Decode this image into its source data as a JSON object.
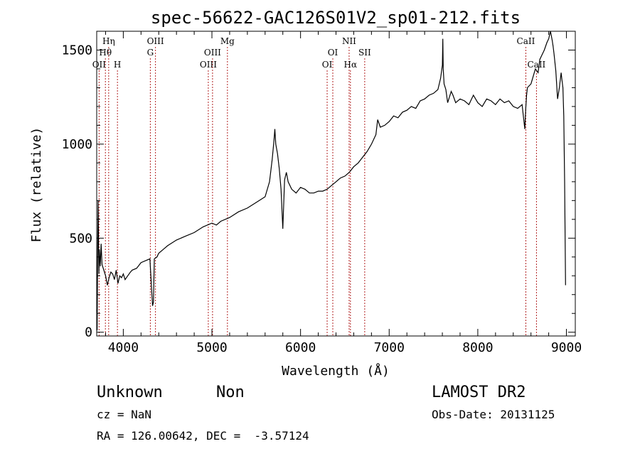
{
  "chart_data": {
    "type": "line",
    "title": "spec-56622-GAC126S01V2_sp01-212.fits",
    "xlabel": "Wavelength (Å)",
    "ylabel": "Flux (relative)",
    "xlim": [
      3700,
      9100
    ],
    "ylim": [
      -20,
      1600
    ],
    "x_ticks": [
      4000,
      5000,
      6000,
      7000,
      8000,
      9000
    ],
    "y_ticks": [
      0,
      500,
      1000,
      1500
    ],
    "x_tick_labels": [
      "4000",
      "5000",
      "6000",
      "7000",
      "8000",
      "9000"
    ],
    "y_tick_labels": [
      "0",
      "500",
      "1000",
      "1500"
    ],
    "grid": false,
    "series": [
      {
        "x": [
          3700,
          3705,
          3710,
          3715,
          3720,
          3725,
          3730,
          3740,
          3750,
          3760,
          3780,
          3800,
          3820,
          3840,
          3860,
          3880,
          3900,
          3920,
          3940,
          3960,
          3980,
          4000,
          4020,
          4050,
          4080,
          4100,
          4150,
          4200,
          4250,
          4300,
          4330,
          4340,
          4350,
          4380,
          4400,
          4450,
          4500,
          4600,
          4700,
          4800,
          4900,
          5000,
          5050,
          5100,
          5200,
          5300,
          5400,
          5500,
          5600,
          5650,
          5680,
          5700,
          5710,
          5720,
          5740,
          5760,
          5780,
          5800,
          5820,
          5840,
          5860,
          5880,
          5900,
          5950,
          6000,
          6050,
          6100,
          6150,
          6200,
          6250,
          6300,
          6350,
          6400,
          6450,
          6500,
          6550,
          6600,
          6650,
          6700,
          6750,
          6800,
          6850,
          6870,
          6900,
          6950,
          7000,
          7050,
          7100,
          7150,
          7200,
          7250,
          7300,
          7350,
          7400,
          7450,
          7500,
          7550,
          7580,
          7600,
          7605,
          7610,
          7620,
          7640,
          7660,
          7680,
          7700,
          7720,
          7750,
          7800,
          7850,
          7900,
          7950,
          8000,
          8050,
          8100,
          8150,
          8200,
          8250,
          8300,
          8350,
          8400,
          8450,
          8500,
          8530,
          8540,
          8550,
          8560,
          8600,
          8650,
          8680,
          8700,
          8750,
          8780,
          8800,
          8820,
          8840,
          8850,
          8860,
          8880,
          8900,
          8920,
          8940,
          8950,
          8960,
          8970,
          8980,
          8990
        ],
        "y": [
          120,
          10,
          380,
          700,
          500,
          310,
          440,
          350,
          470,
          360,
          330,
          300,
          250,
          290,
          320,
          310,
          280,
          330,
          260,
          300,
          290,
          310,
          280,
          300,
          320,
          330,
          340,
          370,
          380,
          390,
          140,
          160,
          390,
          400,
          420,
          440,
          460,
          490,
          510,
          530,
          560,
          580,
          570,
          590,
          610,
          640,
          660,
          690,
          720,
          800,
          920,
          1020,
          1080,
          1000,
          950,
          870,
          760,
          550,
          810,
          850,
          800,
          780,
          760,
          740,
          770,
          760,
          740,
          740,
          750,
          750,
          760,
          780,
          800,
          820,
          830,
          850,
          880,
          900,
          930,
          960,
          1000,
          1050,
          1130,
          1090,
          1100,
          1120,
          1150,
          1140,
          1170,
          1180,
          1200,
          1190,
          1230,
          1240,
          1260,
          1270,
          1290,
          1350,
          1420,
          1560,
          1400,
          1320,
          1290,
          1220,
          1250,
          1280,
          1260,
          1220,
          1240,
          1230,
          1210,
          1260,
          1220,
          1200,
          1240,
          1230,
          1210,
          1240,
          1220,
          1230,
          1200,
          1190,
          1210,
          1080,
          1180,
          1260,
          1300,
          1320,
          1400,
          1380,
          1450,
          1500,
          1540,
          1560,
          1600,
          1550,
          1520,
          1480,
          1390,
          1240,
          1300,
          1380,
          1340,
          1300,
          1150,
          800,
          250
        ]
      }
    ],
    "line_markers": [
      {
        "label": "OII",
        "x": 3727,
        "row": 3
      },
      {
        "label": "Hθ",
        "x": 3798,
        "row": 2
      },
      {
        "label": "Hη",
        "x": 3835,
        "row": 1
      },
      {
        "label": "H",
        "x": 3934,
        "row": 3
      },
      {
        "label": "OIII",
        "x": 4363,
        "row": 1
      },
      {
        "label": "G",
        "x": 4305,
        "row": 2
      },
      {
        "label": "OIII",
        "x": 4959,
        "row": 3
      },
      {
        "label": "OIII",
        "x": 5007,
        "row": 2
      },
      {
        "label": "Mg",
        "x": 5175,
        "row": 1
      },
      {
        "label": "OI",
        "x": 6300,
        "row": 3
      },
      {
        "label": "OI",
        "x": 6364,
        "row": 2
      },
      {
        "label": "NII",
        "x": 6548,
        "row": 1
      },
      {
        "label": "Hα",
        "x": 6563,
        "row": 3
      },
      {
        "label": "SII",
        "x": 6724,
        "row": 2
      },
      {
        "label": "CaII",
        "x": 8542,
        "row": 1
      },
      {
        "label": "CaII",
        "x": 8662,
        "row": 3
      }
    ]
  },
  "info": {
    "class": "Unknown",
    "subclass": "Non",
    "survey": "LAMOST DR2",
    "cz": "cz = NaN",
    "obs_date": "Obs-Date: 20131125",
    "radec": "RA = 126.00642, DEC =  -3.57124"
  }
}
